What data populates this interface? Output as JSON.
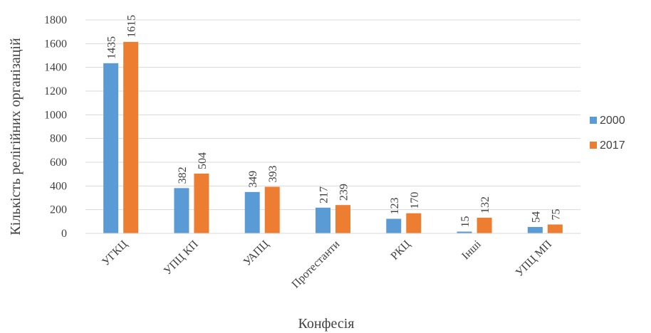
{
  "chart_data": {
    "type": "bar",
    "categories": [
      "УГКЦ",
      "УПЦ КП",
      "УАПЦ",
      "Протестанти",
      "РКЦ",
      "Інші",
      "УПЦ МП"
    ],
    "series": [
      {
        "name": "2000",
        "values": [
          1435,
          382,
          349,
          217,
          123,
          15,
          54
        ],
        "color": "#5b9bd5"
      },
      {
        "name": "2017",
        "values": [
          1615,
          504,
          393,
          239,
          170,
          132,
          75
        ],
        "color": "#ed7d31"
      }
    ],
    "xlabel": "Конфесія",
    "ylabel": "Кількість релігійних організацій",
    "ylim": [
      0,
      1800
    ],
    "yticks": [
      0,
      200,
      400,
      600,
      800,
      1000,
      1200,
      1400,
      1600,
      1800
    ],
    "grid": true,
    "legend_position": "right",
    "gridline_color": "#d9d9d9"
  }
}
